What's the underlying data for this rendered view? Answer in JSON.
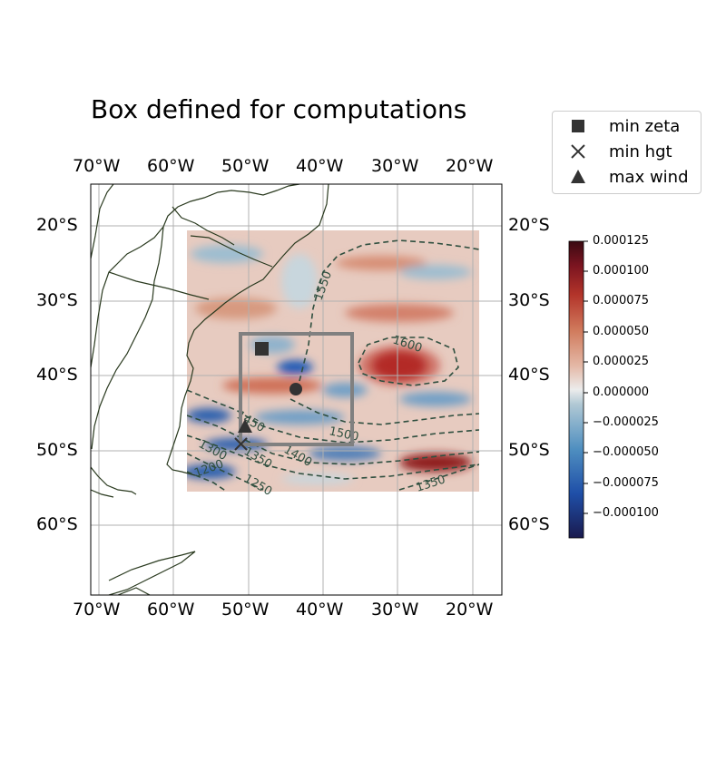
{
  "title": "Box defined for computations",
  "legend": {
    "items": [
      {
        "label": "min zeta",
        "symbol": "square"
      },
      {
        "label": "min hgt",
        "symbol": "x"
      },
      {
        "label": "max wind",
        "symbol": "triangle"
      }
    ]
  },
  "axes": {
    "lon_labels": [
      "70°W",
      "60°W",
      "50°W",
      "40°W",
      "30°W",
      "20°W"
    ],
    "lat_labels": [
      "20°S",
      "30°S",
      "40°S",
      "50°S",
      "60°S"
    ],
    "extent": {
      "lon": [
        -71,
        -16
      ],
      "lat": [
        -69,
        -14
      ]
    },
    "grid": true
  },
  "contours": {
    "style": "dashed",
    "color": "#2f4f3f",
    "labels": [
      "1550",
      "1600",
      "1500",
      "1450",
      "1400",
      "1350",
      "1300",
      "1250",
      "1200",
      "1350"
    ]
  },
  "colorbar": {
    "ticks": [
      "0.000125",
      "0.000100",
      "0.000075",
      "0.000050",
      "0.000025",
      "0.000000",
      "−0.000025",
      "−0.000050",
      "−0.000075",
      "−0.000100"
    ],
    "min": -0.000125,
    "max": 0.000125
  },
  "markers": {
    "min_zeta": {
      "lon": -48.0,
      "lat": -36.5
    },
    "min_hgt": {
      "lon": -51.0,
      "lat": -49.0
    },
    "max_wind": {
      "lon": -50.5,
      "lat": -46.5
    },
    "center": {
      "lon": -44.0,
      "lat": -42.0
    }
  },
  "box": {
    "lon": [
      -51.0,
      -36.0
    ],
    "lat": [
      -49.0,
      -34.0
    ]
  },
  "colors": {
    "box": "#808080",
    "marker": "#333333",
    "coast": "#2a3a1f"
  }
}
